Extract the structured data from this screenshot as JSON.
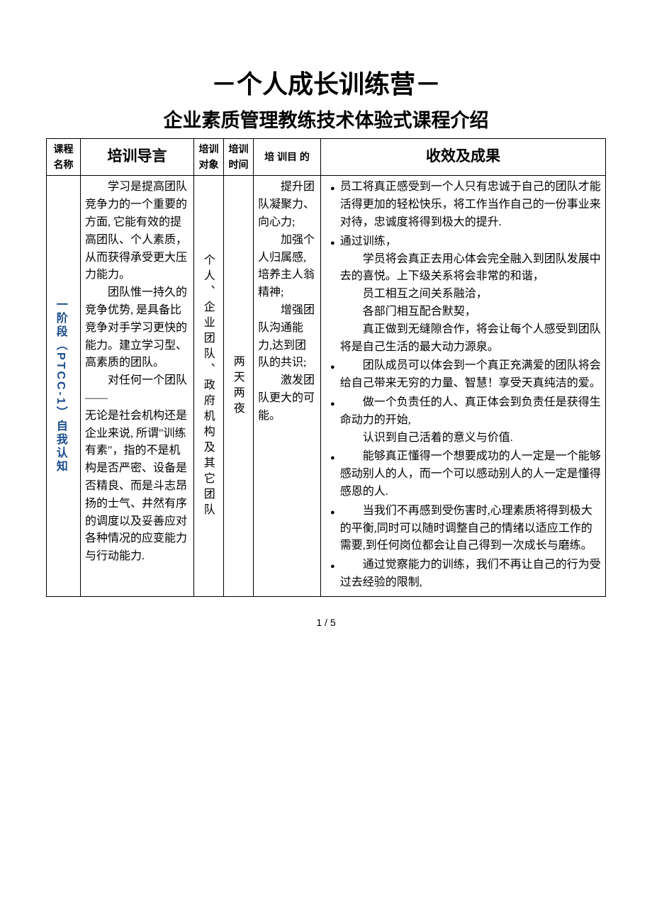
{
  "title_line1": "－个人成长训练营－",
  "title_line2": "企业素质管理教练技术体验式课程介绍",
  "headers": {
    "c1": "课程名称",
    "c2": "培训导言",
    "c3": "培训对象",
    "c4": "培训时间",
    "c5": "培 训目 的",
    "c6": "收效及成果"
  },
  "row": {
    "course_name": "一阶段（PTCC-1）自我认知",
    "intro_p1": "学习是提高团队竞争力的一个重要的方面, 它能有效的提高团队、个人素质，从而获得承受更大压力能力。",
    "intro_p2": "团队惟一持久的竞争优势, 是具备比竞争对手学习更快的能力。建立学习型、高素质的团队。",
    "intro_p3": "对任何一个团队——",
    "intro_p4": "无论是社会机构还是企业来说, 所谓\"训练有素\"，指的不是机构是否严密、设备是否精良、而是斗志昂扬的士气、井然有序的调度以及妥善应对各种情况的应变能力与行动能力.",
    "audience": "个人、企业团队、政府机构及其它团队",
    "duration": "两天两夜",
    "goal_p1": "提升团队凝聚力、向心力;",
    "goal_p2": "加强个人归属感,培养主人翁精神;",
    "goal_p3": "增强团队沟通能力,达到团队的共识;",
    "goal_p4": "激发团队更大的可能。",
    "results": [
      {
        "first": "员工将真正感受到一个人只有忠诚于自己的团队才能活得更加的轻松快乐，将工作当作自己的一份事业来对待，忠诚度将得到极大的提升."
      },
      {
        "first": "通过训练，",
        "rest": [
          "学员将会真正去用心体会完全融入到团队发展中去的喜悦。上下级关系将会非常的和谐，",
          "员工相互之间关系融洽，",
          "各部门相互配合默契，",
          "真正做到无缝隙合作，将会让每个人感受到团队将是自己生活的最大动力源泉。"
        ]
      },
      {
        "rest": [
          "团队成员可以体会到一个真正充满爱的团队将会给自己带来无穷的力量、智慧！享受天真纯洁的爱。"
        ]
      },
      {
        "rest": [
          "做一个负责任的人、真正体会到负责任是获得生命动力的开始,",
          "认识到自己活着的意义与价值."
        ]
      },
      {
        "rest": [
          "能够真正懂得一个想要成功的人一定是一个能够感动别人的人，而一个可以感动别人的人一定是懂得感恩的人."
        ]
      },
      {
        "rest": [
          "当我们不再感到受伤害时,心理素质将得到极大的平衡,同时可以随时调整自己的情绪以适应工作的需要,到任何岗位都会让自己得到一次成长与磨练。"
        ]
      },
      {
        "rest": [
          "通过觉察能力的训练，我们不再让自己的行为受过去经验的限制,"
        ]
      }
    ]
  },
  "pagenum": "1 / 5"
}
